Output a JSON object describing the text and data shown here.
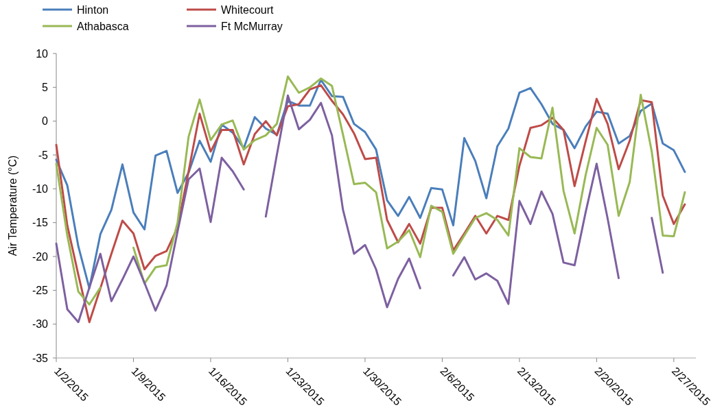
{
  "chart_data": {
    "type": "line",
    "ylabel": "Air Temperature (°C)",
    "legend": "top",
    "grid": false,
    "marker": "none",
    "line_style": "solid",
    "x": [
      "2015-01-02",
      "2015-01-03",
      "2015-01-04",
      "2015-01-05",
      "2015-01-06",
      "2015-01-07",
      "2015-01-08",
      "2015-01-09",
      "2015-01-10",
      "2015-01-11",
      "2015-01-12",
      "2015-01-13",
      "2015-01-14",
      "2015-01-15",
      "2015-01-16",
      "2015-01-17",
      "2015-01-18",
      "2015-01-19",
      "2015-01-20",
      "2015-01-21",
      "2015-01-22",
      "2015-01-23",
      "2015-01-24",
      "2015-01-25",
      "2015-01-26",
      "2015-01-27",
      "2015-01-28",
      "2015-01-29",
      "2015-01-30",
      "2015-01-31",
      "2015-02-01",
      "2015-02-02",
      "2015-02-03",
      "2015-02-04",
      "2015-02-05",
      "2015-02-06",
      "2015-02-07",
      "2015-02-08",
      "2015-02-09",
      "2015-02-10",
      "2015-02-11",
      "2015-02-12",
      "2015-02-13",
      "2015-02-14",
      "2015-02-15",
      "2015-02-16",
      "2015-02-17",
      "2015-02-18",
      "2015-02-19",
      "2015-02-20",
      "2015-02-21",
      "2015-02-22",
      "2015-02-23",
      "2015-02-24",
      "2015-02-25",
      "2015-02-26",
      "2015-02-27",
      "2015-02-28"
    ],
    "xlim": [
      "2015-01-02",
      "2015-03-01"
    ],
    "xticks": [
      {
        "value": "2015-01-02",
        "label": "1/2/2015"
      },
      {
        "value": "2015-01-09",
        "label": "1/9/2015"
      },
      {
        "value": "2015-01-16",
        "label": "1/16/2015"
      },
      {
        "value": "2015-01-23",
        "label": "1/23/2015"
      },
      {
        "value": "2015-01-30",
        "label": "1/30/2015"
      },
      {
        "value": "2015-02-06",
        "label": "2/6/2015"
      },
      {
        "value": "2015-02-13",
        "label": "2/13/2015"
      },
      {
        "value": "2015-02-20",
        "label": "2/20/2015"
      },
      {
        "value": "2015-02-27",
        "label": "2/27/2015"
      }
    ],
    "ylim": [
      -35,
      10
    ],
    "yticks": [
      -35,
      -30,
      -25,
      -20,
      -15,
      -10,
      -5,
      0,
      5,
      10
    ],
    "series": [
      {
        "name": "Hinton",
        "color": "#4a7ebb",
        "values": [
          -5.7,
          -9.5,
          -18.5,
          -24.7,
          -16.7,
          -13.1,
          -6.4,
          -13.5,
          -16.0,
          -5.1,
          -4.4,
          -10.6,
          -7.6,
          -2.9,
          -6.0,
          -0.5,
          -1.7,
          -4.0,
          0.6,
          -1.1,
          -2.0,
          3.0,
          2.3,
          2.3,
          6.1,
          3.7,
          3.6,
          -0.4,
          -1.6,
          -4.2,
          -11.7,
          -14.0,
          -11.2,
          -14.3,
          -9.9,
          -10.1,
          -15.4,
          -2.5,
          -5.9,
          -11.4,
          -3.7,
          -1.1,
          4.2,
          4.9,
          2.5,
          -0.4,
          -1.3,
          -4.0,
          -0.8,
          1.4,
          1.1,
          -3.3,
          -2.2,
          1.5,
          2.6,
          -3.3,
          -4.3,
          -7.5
        ]
      },
      {
        "name": "Whitecourt",
        "color": "#be4b48",
        "values": [
          -3.5,
          -15.4,
          -22.7,
          -29.7,
          -24.7,
          -19.6,
          -14.7,
          -16.6,
          -21.9,
          -19.9,
          -19.2,
          -15.7,
          -7.4,
          1.1,
          -4.5,
          -1.3,
          -1.3,
          -6.4,
          -1.9,
          0.0,
          -2.1,
          2.2,
          2.5,
          4.7,
          5.3,
          3.0,
          1.0,
          -1.8,
          -5.6,
          -5.4,
          -14.6,
          -17.9,
          -15.2,
          -18.1,
          -12.8,
          -12.8,
          -19.1,
          -16.6,
          -14.0,
          -16.6,
          -14.0,
          -14.6,
          -6.6,
          -1.0,
          -0.6,
          0.5,
          -1.3,
          -9.6,
          -3.0,
          3.3,
          -0.4,
          -7.1,
          -2.9,
          3.1,
          2.8,
          -11.0,
          -15.2,
          -12.3
        ]
      },
      {
        "name": "Athabasca",
        "color": "#98b954",
        "values": [
          -6.3,
          -16.9,
          -25.2,
          -27.1,
          -24.6,
          null,
          null,
          -18.7,
          -24.0,
          -21.6,
          -21.3,
          -15.0,
          -2.3,
          3.2,
          -2.8,
          -0.5,
          0.1,
          -4.2,
          -2.8,
          -2.1,
          -0.4,
          6.6,
          4.2,
          5.0,
          6.3,
          5.2,
          -2.0,
          -9.3,
          -9.1,
          -10.5,
          -18.8,
          -17.8,
          -16.1,
          -20.1,
          -12.5,
          -13.4,
          -19.6,
          -16.9,
          -14.3,
          -13.6,
          -14.6,
          -16.9,
          -4.0,
          -5.3,
          -5.5,
          2.0,
          -10.3,
          -16.6,
          -8.0,
          -1.0,
          -3.5,
          -14.0,
          -9.0,
          3.9,
          -4.5,
          -16.9,
          -17.0,
          -10.5
        ]
      },
      {
        "name": "Ft McMurray",
        "color": "#7d60a0",
        "values": [
          -18.1,
          -27.8,
          -29.7,
          -24.6,
          -19.6,
          -26.6,
          -23.4,
          -20.0,
          -23.9,
          -28.0,
          -24.3,
          -16.3,
          -8.6,
          -7.0,
          -14.9,
          -5.4,
          -7.4,
          -10.1,
          null,
          -14.1,
          -5.0,
          3.8,
          -1.2,
          0.2,
          2.7,
          -2.1,
          -13.1,
          -19.6,
          -18.3,
          -21.9,
          -27.5,
          -23.3,
          -20.3,
          -24.7,
          null,
          null,
          -22.8,
          -20.1,
          -23.4,
          -22.5,
          -23.6,
          -27.0,
          -11.8,
          -15.2,
          -10.4,
          -13.7,
          -20.9,
          -21.3,
          -13.5,
          -6.3,
          -14.4,
          -23.2,
          null,
          null,
          -14.3,
          -22.4,
          null,
          null
        ]
      }
    ]
  }
}
